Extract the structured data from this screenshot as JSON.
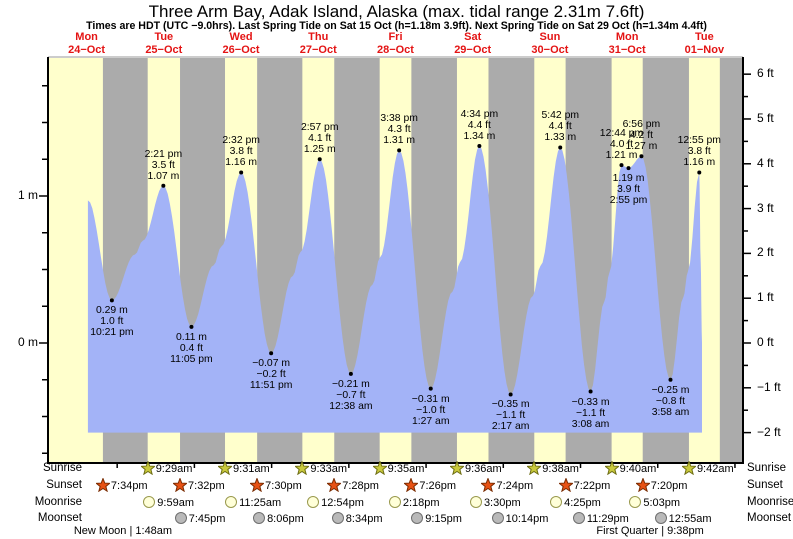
{
  "page": {
    "title": "Three Arm Bay, Adak Island, Alaska (max. tidal range 2.31m 7.6ft)",
    "subtitle": "Times are HDT (UTC −9.0hrs). Last Spring Tide on Sat 15 Oct (h=1.18m 3.9ft). Next Spring Tide on Sat 29 Oct (h=1.34m 4.4ft)"
  },
  "days": [
    {
      "name": "Mon",
      "date": "24−Oct"
    },
    {
      "name": "Tue",
      "date": "25−Oct"
    },
    {
      "name": "Wed",
      "date": "26−Oct"
    },
    {
      "name": "Thu",
      "date": "27−Oct"
    },
    {
      "name": "Fri",
      "date": "28−Oct"
    },
    {
      "name": "Sat",
      "date": "29−Oct"
    },
    {
      "name": "Sun",
      "date": "30−Oct"
    },
    {
      "name": "Mon",
      "date": "31−Oct"
    },
    {
      "name": "Tue",
      "date": "01−Nov"
    }
  ],
  "chart_data": {
    "type": "area",
    "title": "Three Arm Bay, Adak Island, Alaska tide curve",
    "x_axis": {
      "label": "days",
      "range_days": 9
    },
    "y_axis_left": {
      "unit": "m",
      "labels": [
        {
          "text": "1 m",
          "value": 1
        },
        {
          "text": "0 m",
          "value": 0
        }
      ]
    },
    "y_axis_right": {
      "unit": "ft",
      "labels": [
        {
          "text": "6 ft",
          "value": 6
        },
        {
          "text": "5 ft",
          "value": 5
        },
        {
          "text": "4 ft",
          "value": 4
        },
        {
          "text": "3 ft",
          "value": 3
        },
        {
          "text": "2 ft",
          "value": 2
        },
        {
          "text": "1 ft",
          "value": 1
        },
        {
          "text": "0 ft",
          "value": 0
        },
        {
          "text": "−1 ft",
          "value": -1
        },
        {
          "text": "−2 ft",
          "value": -2
        }
      ]
    },
    "tide_events": [
      {
        "day": 0,
        "time": "10:21 pm",
        "m": 0.29,
        "m_label": "0.29 m",
        "ft_label": "1.0 ft",
        "kind": "low"
      },
      {
        "day": 1,
        "time": "2:21 pm",
        "m": 1.07,
        "m_label": "1.07 m",
        "ft_label": "3.5 ft",
        "kind": "high"
      },
      {
        "day": 1,
        "time": "11:05 pm",
        "m": 0.11,
        "m_label": "0.11 m",
        "ft_label": "0.4 ft",
        "kind": "low"
      },
      {
        "day": 2,
        "time": "2:32 pm",
        "m": 1.16,
        "m_label": "1.16 m",
        "ft_label": "3.8 ft",
        "kind": "high"
      },
      {
        "day": 2,
        "time": "11:51 pm",
        "m": -0.07,
        "m_label": "−0.07 m",
        "ft_label": "−0.2 ft",
        "kind": "low"
      },
      {
        "day": 3,
        "time": "2:57 pm",
        "m": 1.25,
        "m_label": "1.25 m",
        "ft_label": "4.1 ft",
        "kind": "high"
      },
      {
        "day": 4,
        "time": "12:38 am",
        "m": -0.21,
        "m_label": "−0.21 m",
        "ft_label": "−0.7 ft",
        "kind": "low"
      },
      {
        "day": 4,
        "time": "3:38 pm",
        "m": 1.31,
        "m_label": "1.31 m",
        "ft_label": "4.3 ft",
        "kind": "high"
      },
      {
        "day": 5,
        "time": "1:27 am",
        "m": -0.31,
        "m_label": "−0.31 m",
        "ft_label": "−1.0 ft",
        "kind": "low"
      },
      {
        "day": 5,
        "time": "4:34 pm",
        "m": 1.34,
        "m_label": "1.34 m",
        "ft_label": "4.4 ft",
        "kind": "high"
      },
      {
        "day": 6,
        "time": "2:17 am",
        "m": -0.35,
        "m_label": "−0.35 m",
        "ft_label": "−1.1 ft",
        "kind": "low"
      },
      {
        "day": 6,
        "time": "5:42 pm",
        "m": 1.33,
        "m_label": "1.33 m",
        "ft_label": "4.4 ft",
        "kind": "high"
      },
      {
        "day": 7,
        "time": "3:08 am",
        "m": -0.33,
        "m_label": "−0.33 m",
        "ft_label": "−1.1 ft",
        "kind": "low"
      },
      {
        "day": 7,
        "time": "12:44 pm",
        "m": 1.21,
        "m_label": "1.21 m",
        "ft_label": "4.0 ft",
        "kind": "high"
      },
      {
        "day": 7,
        "time": "2:55 pm",
        "m": 1.19,
        "m_label": "1.19 m",
        "ft_label": "3.9 ft",
        "kind": "low"
      },
      {
        "day": 7,
        "time": "6:56 pm",
        "m": 1.27,
        "m_label": "1.27 m",
        "ft_label": "4.2 ft",
        "kind": "high"
      },
      {
        "day": 8,
        "time": "3:58 am",
        "m": -0.25,
        "m_label": "−0.25 m",
        "ft_label": "−0.8 ft",
        "kind": "low"
      },
      {
        "day": 8,
        "time": "12:55 pm",
        "m": 1.16,
        "m_label": "1.16 m",
        "ft_label": "3.8 ft",
        "kind": "high"
      }
    ]
  },
  "astro": {
    "row_labels": [
      "Sunrise",
      "Sunset",
      "Moonrise",
      "Moonset"
    ],
    "sunrise": [
      {
        "day": 1,
        "time": "9:29am"
      },
      {
        "day": 2,
        "time": "9:31am"
      },
      {
        "day": 3,
        "time": "9:33am"
      },
      {
        "day": 4,
        "time": "9:35am"
      },
      {
        "day": 5,
        "time": "9:36am"
      },
      {
        "day": 6,
        "time": "9:38am"
      },
      {
        "day": 7,
        "time": "9:40am"
      },
      {
        "day": 8,
        "time": "9:42am"
      }
    ],
    "sunset": [
      {
        "day": 0,
        "time": "7:34pm"
      },
      {
        "day": 1,
        "time": "7:32pm"
      },
      {
        "day": 2,
        "time": "7:30pm"
      },
      {
        "day": 3,
        "time": "7:28pm"
      },
      {
        "day": 4,
        "time": "7:26pm"
      },
      {
        "day": 5,
        "time": "7:24pm"
      },
      {
        "day": 6,
        "time": "7:22pm"
      },
      {
        "day": 7,
        "time": "7:20pm"
      }
    ],
    "moonrise": [
      {
        "day": 1,
        "time": "9:59am"
      },
      {
        "day": 2,
        "time": "11:25am"
      },
      {
        "day": 3,
        "time": "12:54pm"
      },
      {
        "day": 4,
        "time": "2:18pm"
      },
      {
        "day": 5,
        "time": "3:30pm"
      },
      {
        "day": 6,
        "time": "4:25pm"
      },
      {
        "day": 7,
        "time": "5:03pm"
      }
    ],
    "moonset": [
      {
        "day": 1,
        "time": "7:45pm"
      },
      {
        "day": 2,
        "time": "8:06pm"
      },
      {
        "day": 3,
        "time": "8:34pm"
      },
      {
        "day": 4,
        "time": "9:15pm"
      },
      {
        "day": 5,
        "time": "10:14pm"
      },
      {
        "day": 6,
        "time": "11:29pm"
      },
      {
        "day": 8,
        "time": "12:55am"
      }
    ],
    "phases": [
      {
        "label": "New Moon",
        "time": "1:48am",
        "day": 1
      },
      {
        "label": "First Quarter",
        "time": "9:38pm",
        "day": 7
      }
    ]
  },
  "colors": {
    "daylight": "#ffffcc",
    "night": "#ababab",
    "water": "#a3b3f7",
    "day_label_red": "#e41414",
    "sunrise_star_fill": "#c9c93c",
    "sunrise_star_stroke": "#6e6e14",
    "sunset_star_fill": "#e75113",
    "sunset_star_stroke": "#7a2b00",
    "moonrise_fill": "#ffffd8",
    "moonrise_stroke": "#99994d",
    "moonset_fill": "#b9b9b9",
    "moonset_stroke": "#6f6f6f"
  }
}
